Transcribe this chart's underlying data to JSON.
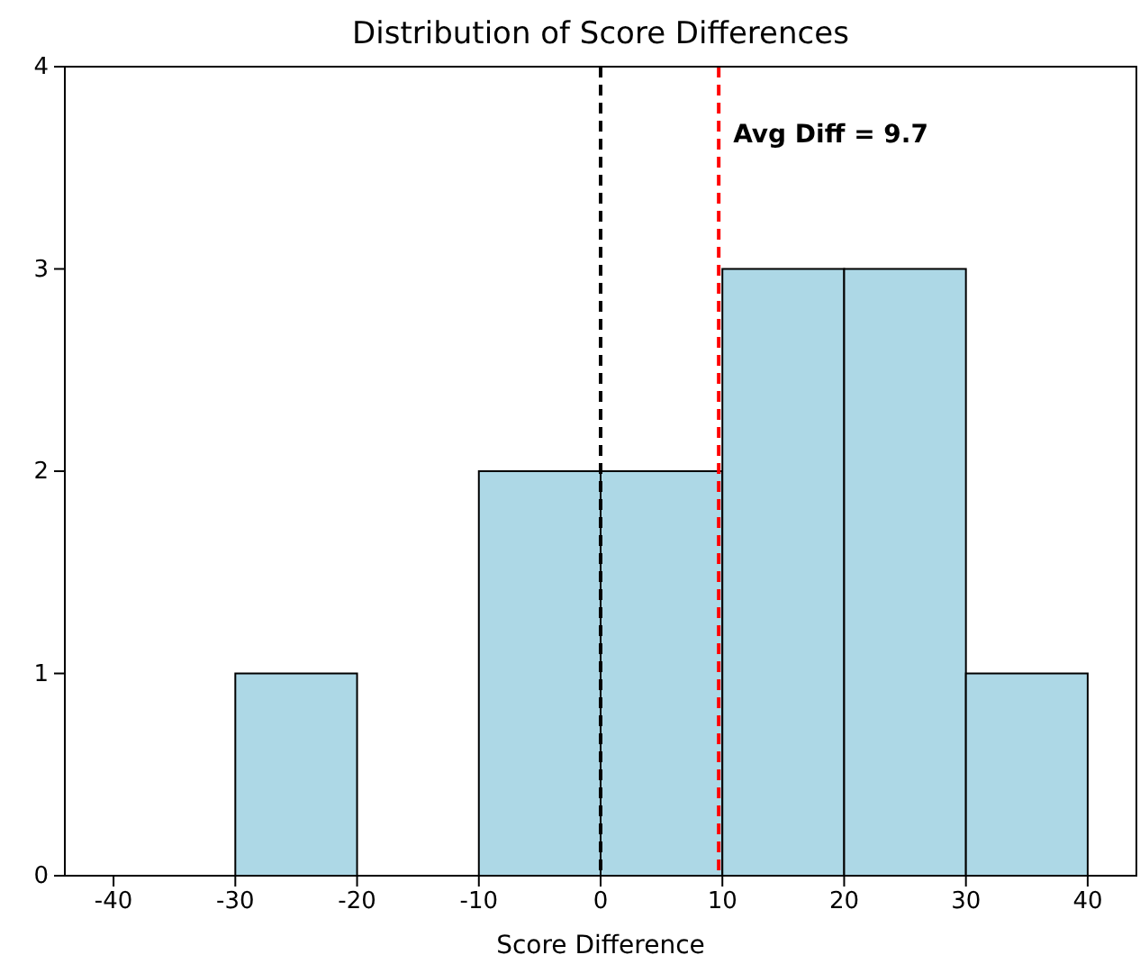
{
  "chart_data": {
    "type": "histogram",
    "title": "Distribution of Score Differences",
    "xlabel": "Score Difference",
    "bins": [
      -40,
      -30,
      -20,
      -10,
      0,
      10,
      20,
      30,
      40
    ],
    "values": [
      0,
      1,
      0,
      2,
      2,
      3,
      3,
      1
    ],
    "color": "#add8e6",
    "xlim": [
      -44,
      44
    ],
    "xticks": [
      -40,
      -30,
      -20,
      -10,
      0,
      10,
      20,
      30,
      40
    ],
    "ylim": [
      0,
      4
    ],
    "yticks": [
      0,
      1,
      2,
      3,
      4
    ],
    "grid": false,
    "ref_lines": [
      {
        "axis": "x",
        "value": 0,
        "label": null,
        "color": "#000000",
        "line_style": "dashed"
      },
      {
        "axis": "x",
        "value": 9.7,
        "label": "Avg Diff = 9.7",
        "color": "#ff0000",
        "line_style": "dashed"
      }
    ]
  }
}
